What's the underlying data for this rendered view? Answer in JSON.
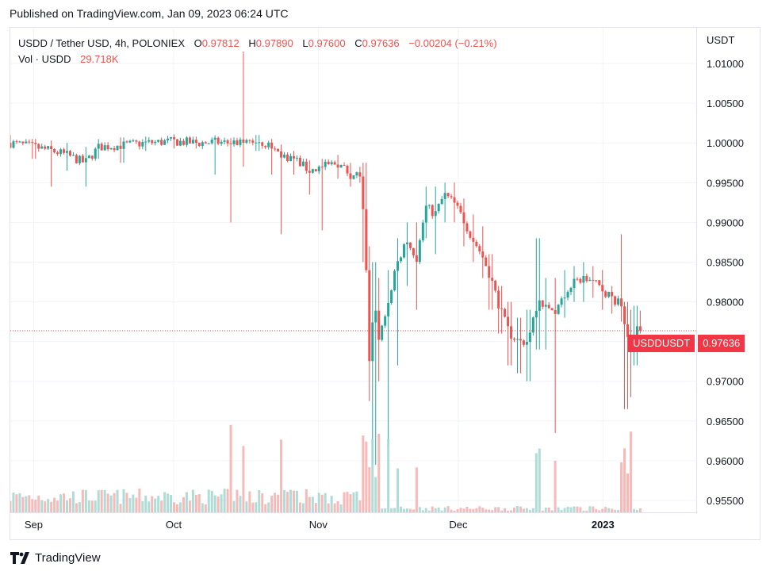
{
  "published": "Published on TradingView.com, Jan 09, 2023 06:24 UTC",
  "legend": {
    "title": "USDD / Tether USD, 4h, POLONIEX",
    "o_label": "O",
    "o": "0.97812",
    "h_label": "H",
    "h": "0.97890",
    "l_label": "L",
    "l": "0.97600",
    "c_label": "C",
    "c": "0.97636",
    "change": "−0.00204 (−0.21%)",
    "vol_label": "Vol · USDD",
    "vol": "29.718K"
  },
  "price_tag": {
    "symbol": "USDDUSDT",
    "value": "0.97636"
  },
  "brand": "TradingView",
  "colors": {
    "up": "#26a69a",
    "down": "#ef5350",
    "up_vol": "#a6d8d3",
    "down_vol": "#f5b2b0",
    "grid": "#f0f3fa",
    "tag": "#f23645"
  },
  "chart_data": {
    "type": "candlestick",
    "ylabel": "USDT",
    "yticks": [
      "1.01000",
      "1.00500",
      "1.00000",
      "0.99500",
      "0.99000",
      "0.98500",
      "0.98000",
      "0.97500",
      "0.97000",
      "0.96500",
      "0.96000",
      "0.95500"
    ],
    "ylim": [
      0.9535,
      1.0145
    ],
    "x_ticks": [
      "Sep",
      "Oct",
      "Nov",
      "Dec",
      "2023"
    ],
    "last_close": 0.97636,
    "series": [
      {
        "date": "2022-08-27",
        "close": 1.0,
        "high": 1.001,
        "low": 0.9995
      },
      {
        "date": "2022-09-01",
        "close": 0.9995,
        "high": 1.0005,
        "low": 0.998
      },
      {
        "date": "2022-09-05",
        "close": 0.999,
        "high": 1.0003,
        "low": 0.9945
      },
      {
        "date": "2022-09-08",
        "close": 0.9985,
        "high": 1.0,
        "low": 0.9965
      },
      {
        "date": "2022-09-12",
        "close": 0.9975,
        "high": 0.9995,
        "low": 0.9945
      },
      {
        "date": "2022-09-15",
        "close": 0.9995,
        "high": 1.0005,
        "low": 0.998
      },
      {
        "date": "2022-09-20",
        "close": 0.9997,
        "high": 1.0007,
        "low": 0.9975
      },
      {
        "date": "2022-09-25",
        "close": 1.0,
        "high": 1.0008,
        "low": 0.999
      },
      {
        "date": "2022-10-01",
        "close": 1.0002,
        "high": 1.001,
        "low": 0.9993
      },
      {
        "date": "2022-10-06",
        "close": 1.0,
        "high": 1.0008,
        "low": 0.9993
      },
      {
        "date": "2022-10-10",
        "close": 1.0001,
        "high": 1.0008,
        "low": 0.996
      },
      {
        "date": "2022-10-13",
        "close": 1.0,
        "high": 1.0006,
        "low": 0.99
      },
      {
        "date": "2022-10-16",
        "close": 1.0001,
        "high": 1.0115,
        "low": 0.997
      },
      {
        "date": "2022-10-19",
        "close": 1.0003,
        "high": 1.001,
        "low": 0.999
      },
      {
        "date": "2022-10-22",
        "close": 0.9995,
        "high": 1.0005,
        "low": 0.996
      },
      {
        "date": "2022-10-24",
        "close": 0.9985,
        "high": 0.9998,
        "low": 0.9885
      },
      {
        "date": "2022-10-27",
        "close": 0.998,
        "high": 0.999,
        "low": 0.996
      },
      {
        "date": "2022-10-30",
        "close": 0.9965,
        "high": 0.9978,
        "low": 0.9935
      },
      {
        "date": "2022-11-02",
        "close": 0.997,
        "high": 0.998,
        "low": 0.989
      },
      {
        "date": "2022-11-05",
        "close": 0.9975,
        "high": 0.9985,
        "low": 0.9955
      },
      {
        "date": "2022-11-08",
        "close": 0.996,
        "high": 0.9975,
        "low": 0.9945
      },
      {
        "date": "2022-11-10",
        "close": 0.996,
        "high": 0.997,
        "low": 0.995
      },
      {
        "date": "2022-11-11",
        "close": 0.988,
        "high": 0.9975,
        "low": 0.985
      },
      {
        "date": "2022-11-12",
        "close": 0.972,
        "high": 0.987,
        "low": 0.9675
      },
      {
        "date": "2022-11-13",
        "close": 0.98,
        "high": 0.985,
        "low": 0.9595
      },
      {
        "date": "2022-11-14",
        "close": 0.975,
        "high": 0.983,
        "low": 0.97
      },
      {
        "date": "2022-11-16",
        "close": 0.98,
        "high": 0.984,
        "low": 0.962
      },
      {
        "date": "2022-11-18",
        "close": 0.985,
        "high": 0.988,
        "low": 0.972
      },
      {
        "date": "2022-11-20",
        "close": 0.988,
        "high": 0.99,
        "low": 0.982
      },
      {
        "date": "2022-11-22",
        "close": 0.985,
        "high": 0.99,
        "low": 0.979
      },
      {
        "date": "2022-11-24",
        "close": 0.992,
        "high": 0.9945,
        "low": 0.988
      },
      {
        "date": "2022-11-26",
        "close": 0.991,
        "high": 0.9945,
        "low": 0.986
      },
      {
        "date": "2022-11-28",
        "close": 0.9935,
        "high": 0.995,
        "low": 0.99
      },
      {
        "date": "2022-11-30",
        "close": 0.9925,
        "high": 0.995,
        "low": 0.99
      },
      {
        "date": "2022-12-02",
        "close": 0.9905,
        "high": 0.993,
        "low": 0.987
      },
      {
        "date": "2022-12-04",
        "close": 0.988,
        "high": 0.991,
        "low": 0.985
      },
      {
        "date": "2022-12-06",
        "close": 0.986,
        "high": 0.9895,
        "low": 0.983
      },
      {
        "date": "2022-12-08",
        "close": 0.983,
        "high": 0.986,
        "low": 0.979
      },
      {
        "date": "2022-12-10",
        "close": 0.979,
        "high": 0.982,
        "low": 0.976
      },
      {
        "date": "2022-12-12",
        "close": 0.976,
        "high": 0.98,
        "low": 0.972
      },
      {
        "date": "2022-12-14",
        "close": 0.975,
        "high": 0.978,
        "low": 0.971
      },
      {
        "date": "2022-12-16",
        "close": 0.975,
        "high": 0.979,
        "low": 0.97
      },
      {
        "date": "2022-12-18",
        "close": 0.98,
        "high": 0.988,
        "low": 0.974
      },
      {
        "date": "2022-12-20",
        "close": 0.979,
        "high": 0.983,
        "low": 0.974
      },
      {
        "date": "2022-12-22",
        "close": 0.979,
        "high": 0.983,
        "low": 0.9635
      },
      {
        "date": "2022-12-24",
        "close": 0.981,
        "high": 0.984,
        "low": 0.978
      },
      {
        "date": "2022-12-26",
        "close": 0.9825,
        "high": 0.9845,
        "low": 0.98
      },
      {
        "date": "2022-12-28",
        "close": 0.983,
        "high": 0.985,
        "low": 0.98
      },
      {
        "date": "2022-12-30",
        "close": 0.9825,
        "high": 0.9845,
        "low": 0.9805
      },
      {
        "date": "2023-01-01",
        "close": 0.9815,
        "high": 0.984,
        "low": 0.979
      },
      {
        "date": "2023-01-03",
        "close": 0.9805,
        "high": 0.982,
        "low": 0.9785
      },
      {
        "date": "2023-01-05",
        "close": 0.9795,
        "high": 0.9885,
        "low": 0.9775
      },
      {
        "date": "2023-01-06",
        "close": 0.976,
        "high": 0.98,
        "low": 0.9665
      },
      {
        "date": "2023-01-07",
        "close": 0.974,
        "high": 0.979,
        "low": 0.968
      },
      {
        "date": "2023-01-08",
        "close": 0.9775,
        "high": 0.9795,
        "low": 0.972
      },
      {
        "date": "2023-01-09",
        "close": 0.97636,
        "high": 0.9789,
        "low": 0.976
      }
    ]
  }
}
